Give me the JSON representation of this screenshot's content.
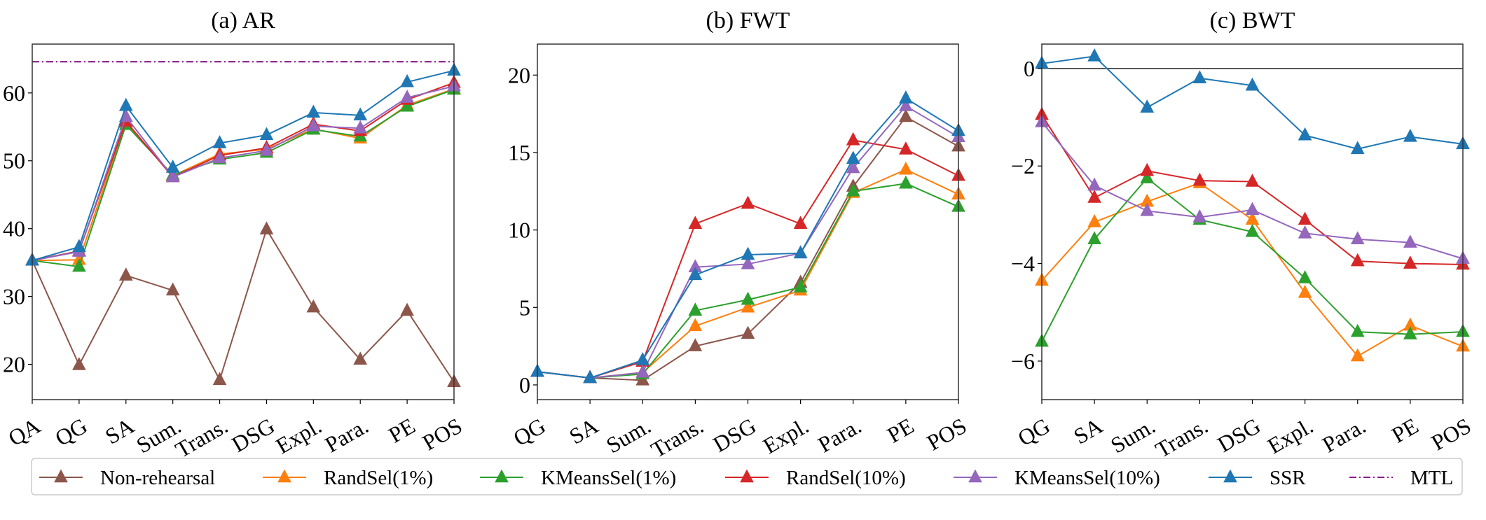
{
  "series_styles": [
    {
      "name": "Non-rehearsal",
      "color": "#8c564b",
      "marker": "triangle-up"
    },
    {
      "name": "RandSel(1%)",
      "color": "#ff7f0e",
      "marker": "triangle-up"
    },
    {
      "name": "KMeansSel(1%)",
      "color": "#2ca02c",
      "marker": "triangle-up"
    },
    {
      "name": "RandSel(10%)",
      "color": "#d62728",
      "marker": "triangle-up"
    },
    {
      "name": "KMeansSel(10%)",
      "color": "#9467bd",
      "marker": "triangle-up"
    },
    {
      "name": "SSR",
      "color": "#1f77b4",
      "marker": "triangle-up"
    },
    {
      "name": "MTL",
      "color": "#8b1a8b",
      "marker": "none",
      "linestyle": "dash-dot"
    }
  ],
  "legend": {
    "placement": "bottom-center",
    "columns": 7
  },
  "chart_data": [
    {
      "type": "line",
      "title": "(a) AR",
      "xlabel": "",
      "ylabel": "",
      "categories": [
        "QA",
        "QG",
        "SA",
        "Sum.",
        "Trans.",
        "DSG",
        "Expl.",
        "Para.",
        "PE",
        "POS"
      ],
      "ylim": [
        14.8,
        67.2
      ],
      "yticks": [
        20,
        30,
        40,
        50,
        60
      ],
      "grid": false,
      "series": [
        {
          "name": "Non-rehearsal",
          "values": [
            35.3,
            19.9,
            33.1,
            30.9,
            17.7,
            39.9,
            28.4,
            20.7,
            27.9,
            17.4
          ]
        },
        {
          "name": "RandSel(1%)",
          "values": [
            35.3,
            35.4,
            55.6,
            47.8,
            51.0,
            51.7,
            54.7,
            53.3,
            58.2,
            60.6
          ]
        },
        {
          "name": "KMeansSel(1%)",
          "values": [
            35.3,
            34.4,
            55.3,
            47.9,
            50.2,
            51.2,
            54.6,
            53.6,
            58.0,
            60.5
          ]
        },
        {
          "name": "RandSel(10%)",
          "values": [
            35.3,
            36.7,
            55.8,
            47.6,
            50.8,
            51.9,
            55.4,
            54.4,
            59.0,
            61.5
          ]
        },
        {
          "name": "KMeansSel(10%)",
          "values": [
            35.3,
            36.6,
            56.5,
            47.6,
            50.4,
            51.5,
            55.1,
            54.8,
            59.3,
            61.0
          ]
        },
        {
          "name": "SSR",
          "values": [
            35.3,
            37.3,
            58.1,
            49.0,
            52.6,
            53.8,
            57.1,
            56.7,
            61.6,
            63.3
          ]
        }
      ],
      "hlines": [
        {
          "name": "MTL",
          "value": 64.6
        }
      ]
    },
    {
      "type": "line",
      "title": "(b) FWT",
      "xlabel": "",
      "ylabel": "",
      "categories": [
        "QG",
        "SA",
        "Sum.",
        "Trans.",
        "DSG",
        "Expl.",
        "Para.",
        "PE",
        "POS"
      ],
      "ylim": [
        -0.95,
        22.0
      ],
      "yticks": [
        0,
        5,
        10,
        15,
        20
      ],
      "grid": false,
      "series": [
        {
          "name": "Non-rehearsal",
          "values": [
            0.85,
            0.45,
            0.3,
            2.5,
            3.3,
            6.6,
            12.8,
            17.3,
            15.4
          ]
        },
        {
          "name": "RandSel(1%)",
          "values": [
            0.85,
            0.45,
            0.8,
            3.8,
            5.0,
            6.1,
            12.4,
            13.9,
            12.3
          ]
        },
        {
          "name": "KMeansSel(1%)",
          "values": [
            0.85,
            0.45,
            0.7,
            4.8,
            5.5,
            6.3,
            12.5,
            13.0,
            11.5
          ]
        },
        {
          "name": "RandSel(10%)",
          "values": [
            0.85,
            0.45,
            1.5,
            10.4,
            11.7,
            10.4,
            15.8,
            15.2,
            13.5
          ]
        },
        {
          "name": "KMeansSel(10%)",
          "values": [
            0.85,
            0.45,
            0.8,
            7.6,
            7.8,
            8.5,
            14.0,
            18.0,
            16.0
          ]
        },
        {
          "name": "SSR",
          "values": [
            0.85,
            0.45,
            1.6,
            7.1,
            8.4,
            8.5,
            14.6,
            18.5,
            16.4
          ]
        }
      ],
      "hlines": []
    },
    {
      "type": "line",
      "title": "(c) BWT",
      "xlabel": "",
      "ylabel": "",
      "categories": [
        "QG",
        "SA",
        "Sum.",
        "Trans.",
        "DSG",
        "Expl.",
        "Para.",
        "PE",
        "POS"
      ],
      "ylim": [
        -6.79,
        0.5
      ],
      "yticks": [
        -6,
        -4,
        -2,
        0
      ],
      "ytick_labels": [
        "−6",
        "−4",
        "−2",
        "0"
      ],
      "grid": false,
      "series": [
        {
          "name": "RandSel(1%)",
          "values": [
            -4.35,
            -3.15,
            -2.73,
            -2.35,
            -3.1,
            -4.6,
            -5.9,
            -5.27,
            -5.7
          ]
        },
        {
          "name": "KMeansSel(1%)",
          "values": [
            -5.6,
            -3.5,
            -2.25,
            -3.1,
            -3.35,
            -4.3,
            -5.4,
            -5.45,
            -5.4
          ]
        },
        {
          "name": "RandSel(10%)",
          "values": [
            -0.95,
            -2.65,
            -2.1,
            -2.3,
            -2.32,
            -3.1,
            -3.95,
            -4.0,
            -4.02
          ]
        },
        {
          "name": "KMeansSel(10%)",
          "values": [
            -1.1,
            -2.4,
            -2.92,
            -3.05,
            -2.9,
            -3.38,
            -3.5,
            -3.57,
            -3.9
          ]
        },
        {
          "name": "SSR",
          "values": [
            0.1,
            0.25,
            -0.8,
            -0.2,
            -0.35,
            -1.37,
            -1.65,
            -1.4,
            -1.55
          ]
        }
      ],
      "hlines": [
        {
          "name": "zero-reference",
          "value": 0,
          "color": "#000000"
        }
      ]
    }
  ]
}
